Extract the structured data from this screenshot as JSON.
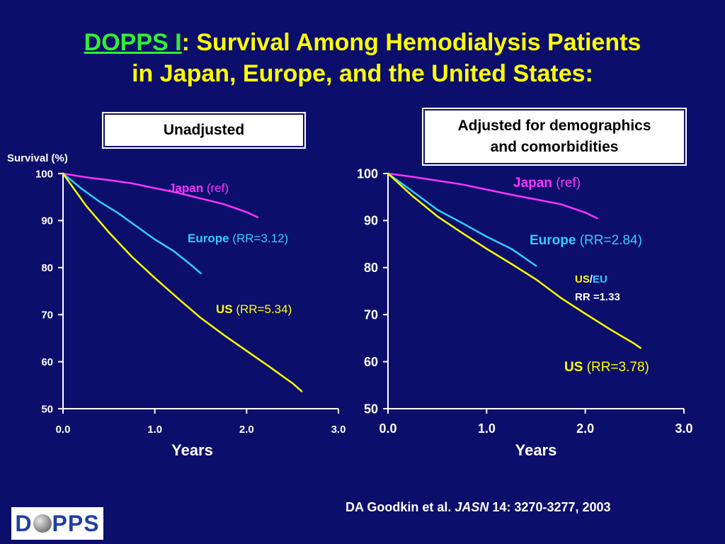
{
  "title": {
    "prefix": "DOPPS I",
    "line1": ": Survival Among Hemodialysis Patients",
    "line2": "in Japan, Europe, and the United States:"
  },
  "panels": {
    "left_label": "Unadjusted",
    "right_label_line1": "Adjusted for demographics",
    "right_label_line2": "and comorbidities"
  },
  "citation": {
    "authors": "DA Goodkin et al.",
    "journal": "JASN",
    "details": "14: 3270-3277, 2003"
  },
  "logo": {
    "text_left": "D",
    "text_right": "PPS"
  },
  "colors": {
    "background": "#0b0f6b",
    "title": "#ffff00",
    "prefix": "#33ee33",
    "japan": "#ff33ff",
    "europe": "#33ccff",
    "us": "#ffff00"
  },
  "chart_data": [
    {
      "type": "line",
      "panel": "Unadjusted",
      "ylabel": "Survival (%)",
      "xlabel": "Years",
      "xlim": [
        0,
        3
      ],
      "ylim": [
        50,
        100
      ],
      "xticks": [
        "0.0",
        "1.0",
        "2.0",
        "3.0"
      ],
      "yticks": [
        "50",
        "60",
        "70",
        "80",
        "90",
        "100"
      ],
      "series": [
        {
          "name": "Japan",
          "annotation": "(ref)",
          "color": "#ff33ff",
          "x": [
            0,
            0.25,
            0.5,
            0.75,
            1.0,
            1.25,
            1.5,
            1.75,
            2.0,
            2.12
          ],
          "y": [
            100,
            99.2,
            98.6,
            97.9,
            96.9,
            95.9,
            94.7,
            93.5,
            91.8,
            90.7
          ]
        },
        {
          "name": "Europe",
          "annotation": "(RR=3.12)",
          "color": "#33ccff",
          "x": [
            0,
            0.2,
            0.4,
            0.6,
            0.8,
            1.0,
            1.2,
            1.4,
            1.5
          ],
          "y": [
            100,
            96.8,
            94.0,
            91.6,
            88.8,
            86.0,
            83.6,
            80.5,
            78.8
          ]
        },
        {
          "name": "US",
          "annotation": "(RR=5.34)",
          "color": "#ffff00",
          "x": [
            0,
            0.25,
            0.5,
            0.75,
            1.0,
            1.25,
            1.5,
            1.75,
            2.0,
            2.25,
            2.5,
            2.6
          ],
          "y": [
            100,
            93.2,
            87.5,
            82.3,
            77.8,
            73.5,
            69.3,
            65.7,
            62.3,
            58.9,
            55.4,
            53.7
          ]
        }
      ]
    },
    {
      "type": "line",
      "panel": "Adjusted for demographics and comorbidities",
      "ylabel": "",
      "xlabel": "Years",
      "xlim": [
        0,
        3
      ],
      "ylim": [
        50,
        100
      ],
      "xticks": [
        "0.0",
        "1.0",
        "2.0",
        "3.0"
      ],
      "yticks": [
        "50",
        "60",
        "70",
        "80",
        "90",
        "100"
      ],
      "series": [
        {
          "name": "Japan",
          "annotation": "(ref)",
          "color": "#ff33ff",
          "x": [
            0,
            0.25,
            0.5,
            0.75,
            1.0,
            1.25,
            1.5,
            1.75,
            2.0,
            2.12
          ],
          "y": [
            100,
            99.3,
            98.5,
            97.7,
            96.6,
            95.5,
            94.5,
            93.5,
            91.7,
            90.5
          ]
        },
        {
          "name": "Europe",
          "annotation": "(RR=2.84)",
          "color": "#33ccff",
          "x": [
            0,
            0.25,
            0.5,
            0.75,
            1.0,
            1.25,
            1.5
          ],
          "y": [
            100,
            96.2,
            92.3,
            89.5,
            86.6,
            84.0,
            80.4
          ]
        },
        {
          "name": "US",
          "annotation": "(RR=3.78)",
          "color": "#ffff00",
          "x": [
            0,
            0.25,
            0.5,
            0.75,
            1.0,
            1.25,
            1.5,
            1.75,
            2.0,
            2.25,
            2.5,
            2.56
          ],
          "y": [
            100,
            95.2,
            90.9,
            87.4,
            84.0,
            80.8,
            77.5,
            73.6,
            70.2,
            66.9,
            63.8,
            62.9
          ]
        }
      ],
      "extra_annotation": {
        "us_label": "US",
        "sep": "/",
        "eu_label": "EU",
        "rr": "RR =1.33"
      }
    }
  ]
}
